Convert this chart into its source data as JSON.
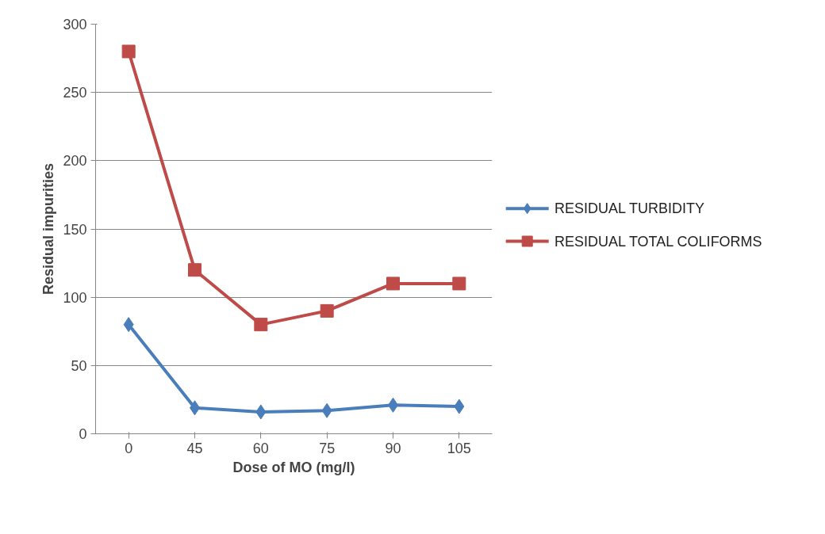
{
  "chart_data": {
    "type": "line",
    "xlabel": "Dose of MO (mg/l)",
    "ylabel": "Residual impurities",
    "categories": [
      "0",
      "45",
      "60",
      "75",
      "90",
      "105"
    ],
    "ylim": [
      0,
      300
    ],
    "yticks": [
      0,
      50,
      100,
      150,
      200,
      250,
      300
    ],
    "grid": "y",
    "legend": "right",
    "series": [
      {
        "name": "RESIDUAL TURBIDITY",
        "color": "#4a7ebb",
        "marker": "diamond",
        "values": [
          80,
          19,
          16,
          17,
          21,
          20
        ]
      },
      {
        "name": "RESIDUAL TOTAL COLIFORMS",
        "color": "#be4b48",
        "marker": "square",
        "values": [
          280,
          120,
          80,
          90,
          110,
          110
        ]
      }
    ]
  }
}
